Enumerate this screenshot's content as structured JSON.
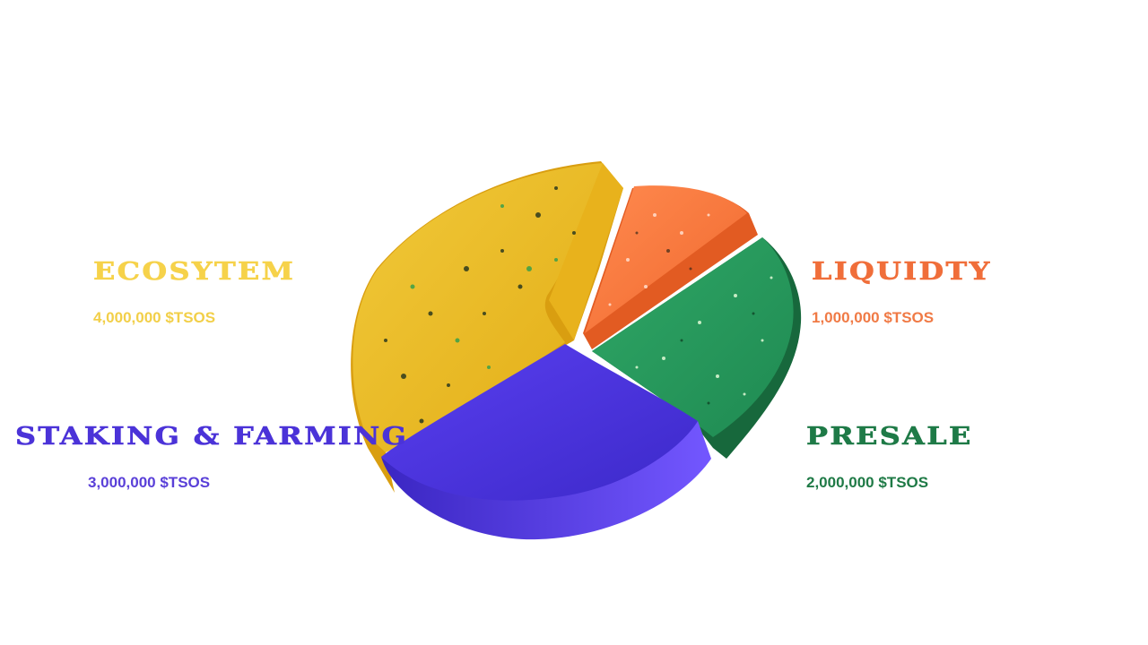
{
  "chart_data": {
    "type": "pie",
    "slices": [
      {
        "label": "ECOSYTEM",
        "value": 4000000,
        "value_label": "4,000,000 $TSOS",
        "color": "#f2c533"
      },
      {
        "label": "LIQUIDTY",
        "value": 1000000,
        "value_label": "1,000,000 $TSOS",
        "color": "#f06e3a"
      },
      {
        "label": "PRESALE",
        "value": 2000000,
        "value_label": "2,000,000 $TSOS",
        "color": "#1e7a47"
      },
      {
        "label": "STAKING & FARMING",
        "value": 3000000,
        "value_label": "3,000,000 $TSOS",
        "color": "#4b33d8"
      }
    ],
    "legend": "none",
    "grid": false
  }
}
